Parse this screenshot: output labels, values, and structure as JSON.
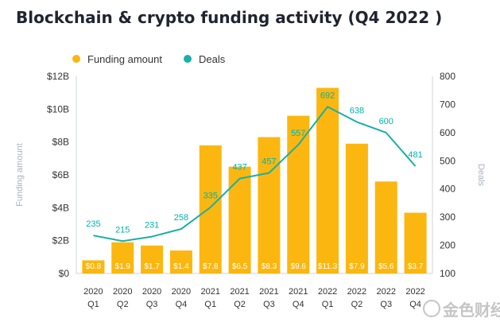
{
  "chart_data": {
    "type": "bar+line",
    "title": "Blockchain & crypto funding activity (Q4 2022 )",
    "categories": [
      [
        "2020",
        "Q1"
      ],
      [
        "2020",
        "Q2"
      ],
      [
        "2020",
        "Q3"
      ],
      [
        "2020",
        "Q4"
      ],
      [
        "2021",
        "Q1"
      ],
      [
        "2021",
        "Q2"
      ],
      [
        "2021",
        "Q3"
      ],
      [
        "2021",
        "Q4"
      ],
      [
        "2022",
        "Q1"
      ],
      [
        "2022",
        "Q2"
      ],
      [
        "2022",
        "Q3"
      ],
      [
        "2022",
        "Q4"
      ]
    ],
    "series": [
      {
        "name": "Funding amount",
        "type": "bar",
        "axis": "left",
        "color": "#fbb70f",
        "values": [
          0.8,
          1.9,
          1.7,
          1.4,
          7.8,
          6.5,
          8.3,
          9.6,
          11.3,
          7.9,
          5.6,
          3.7
        ],
        "labels": [
          "$0.8",
          "$1.9",
          "$1.7",
          "$1.4",
          "$7.8",
          "$6.5",
          "$8.3",
          "$9.6",
          "$11.3",
          "$7.9",
          "$5.6",
          "$3.7"
        ]
      },
      {
        "name": "Deals",
        "type": "line",
        "axis": "right",
        "color": "#1aafa8",
        "values": [
          235,
          215,
          231,
          258,
          335,
          437,
          457,
          557,
          692,
          638,
          600,
          481
        ],
        "labels": [
          "235",
          "215",
          "231",
          "258",
          "335",
          "437",
          "457",
          "557",
          "692",
          "638",
          "600",
          "481"
        ]
      }
    ],
    "y_left": {
      "label": "Funding amount",
      "range": [
        0,
        12
      ],
      "ticks": [
        0,
        2,
        4,
        6,
        8,
        10,
        12
      ],
      "tick_labels": [
        "$0",
        "$2B",
        "$4B",
        "$6B",
        "$8B",
        "$10B",
        "$12B"
      ]
    },
    "y_right": {
      "label": "Deals",
      "range": [
        100,
        800
      ],
      "ticks": [
        100,
        200,
        300,
        400,
        500,
        600,
        700,
        800
      ],
      "tick_labels": [
        "100",
        "200",
        "300",
        "400",
        "500",
        "600",
        "700",
        "800"
      ]
    },
    "legend": {
      "position": "top-left",
      "entries": [
        "Funding amount",
        "Deals"
      ]
    }
  },
  "watermark": {
    "text": "金色财经"
  }
}
